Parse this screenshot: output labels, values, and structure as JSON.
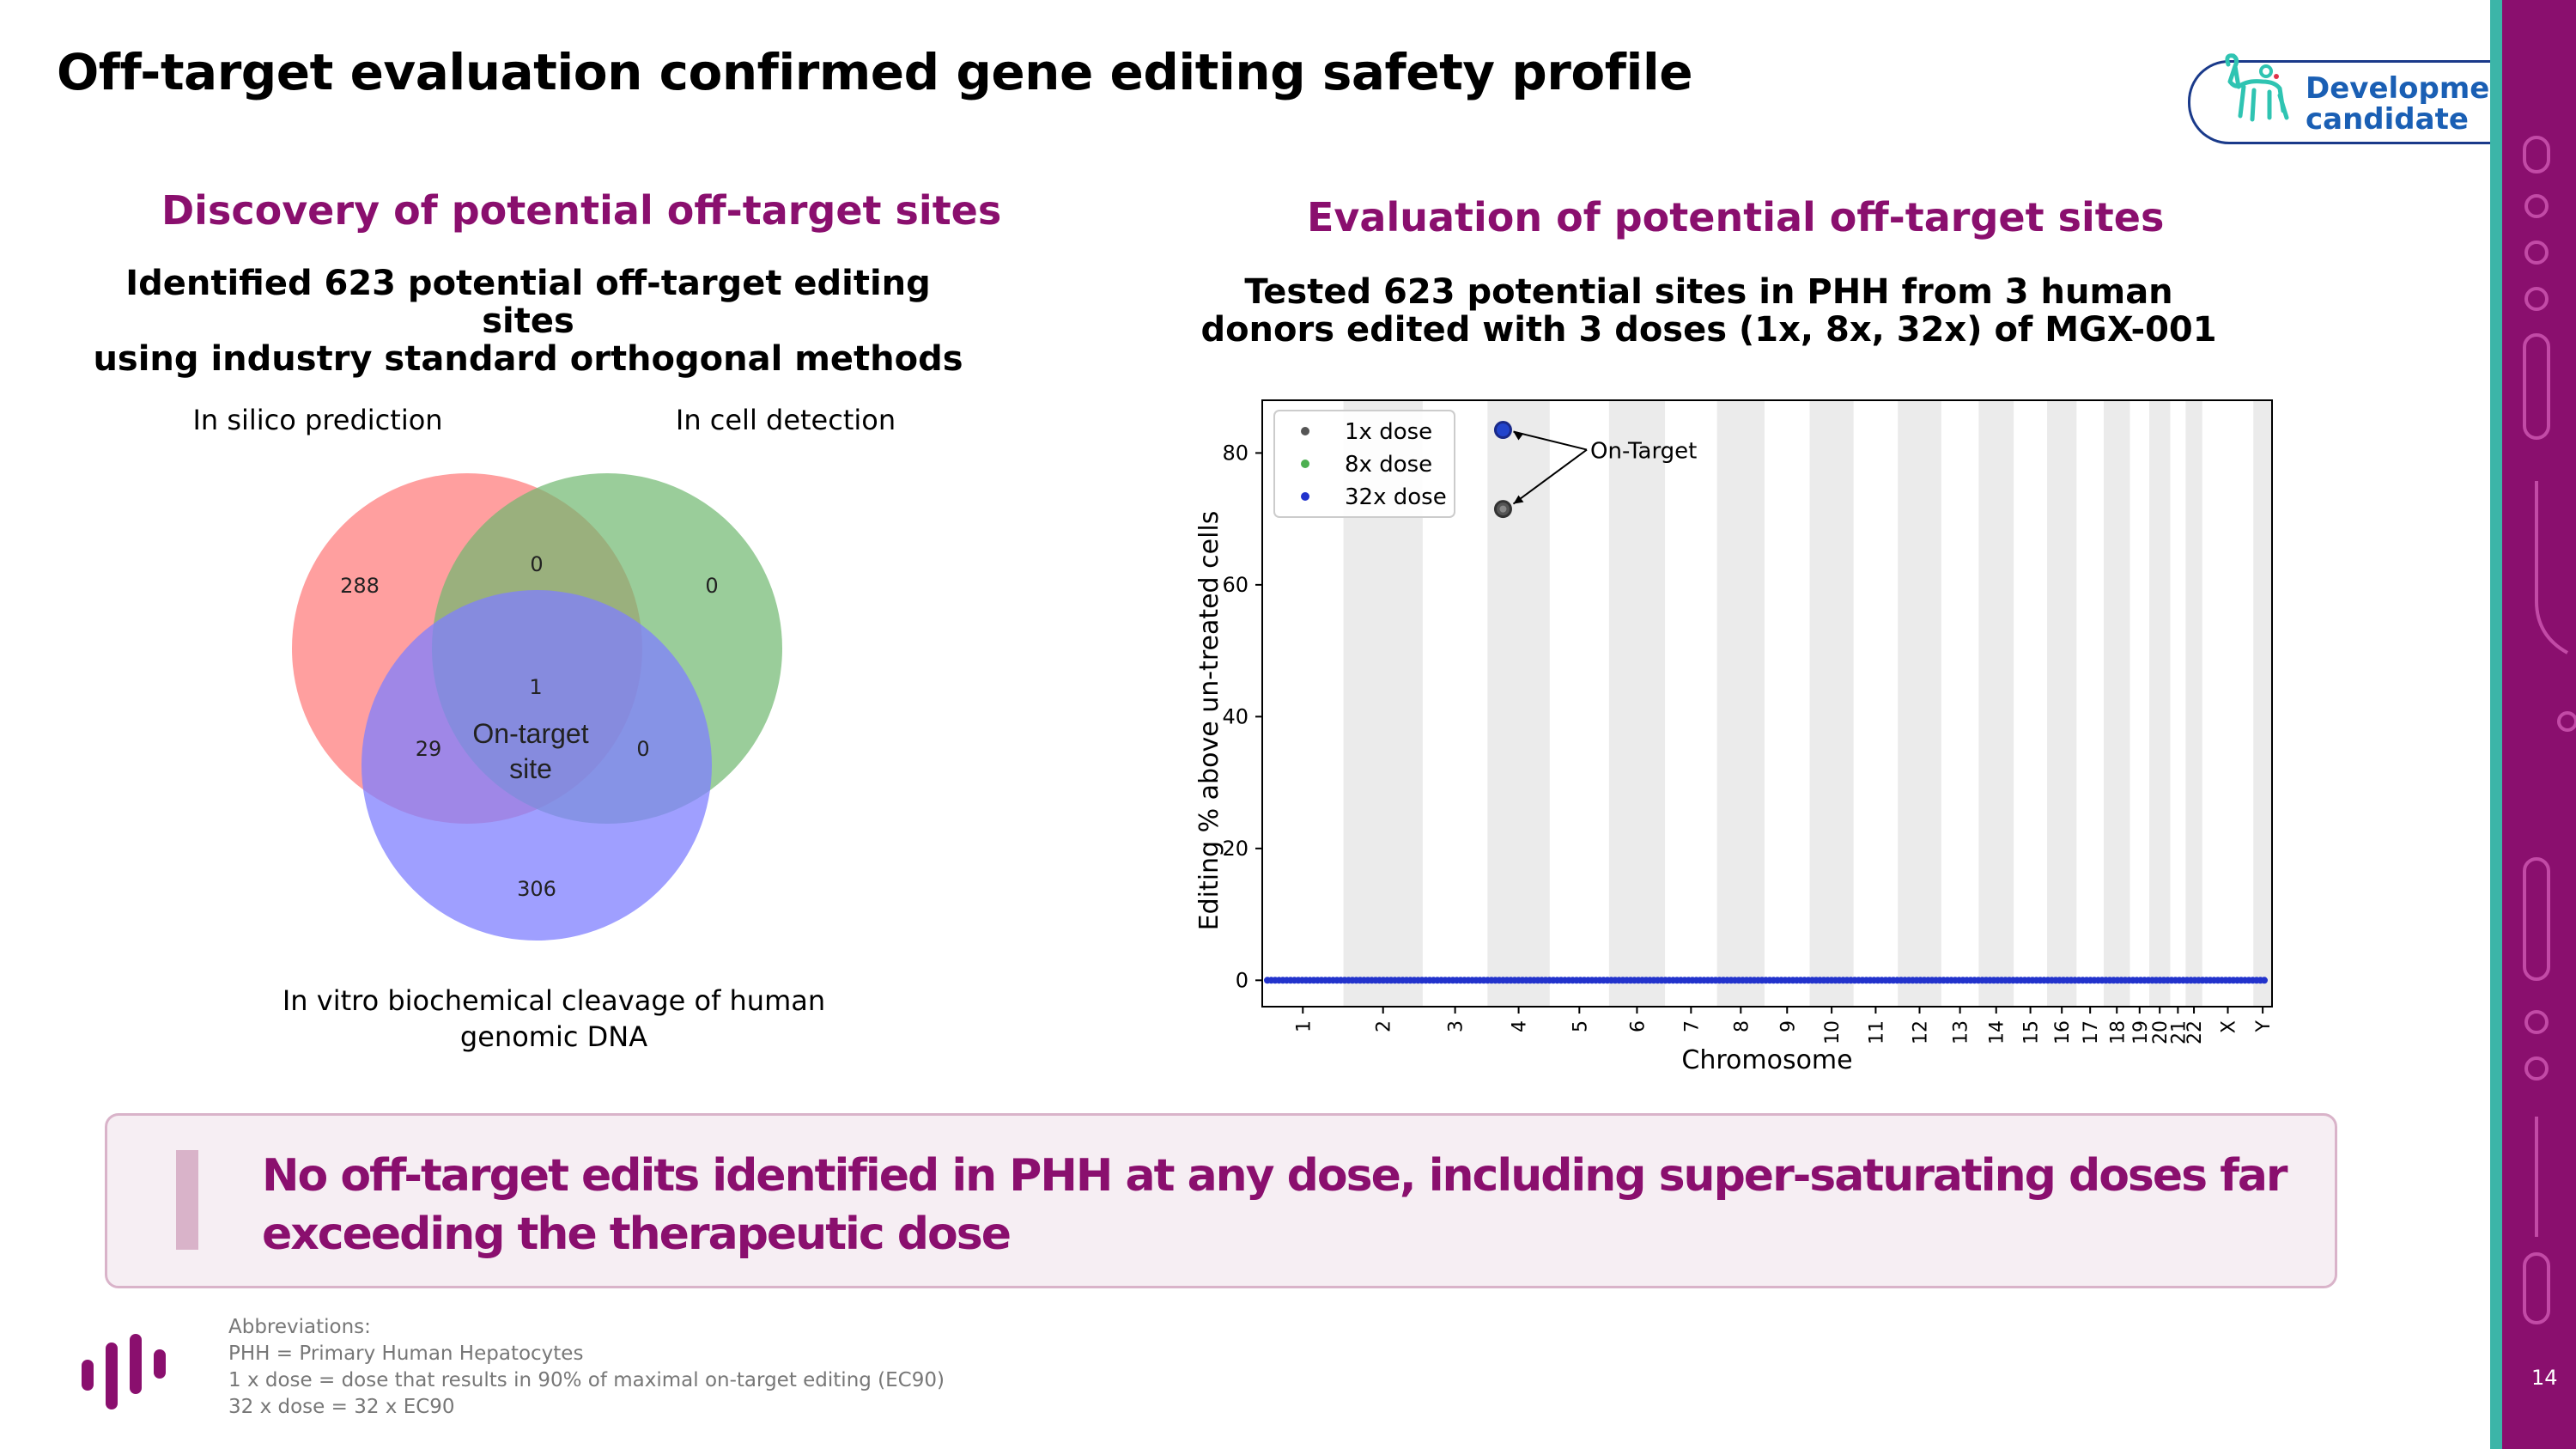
{
  "title": "Off-target evaluation confirmed gene editing safety profile",
  "badge": {
    "line1": "Development",
    "line2": "candidate",
    "icon": "cat-icon"
  },
  "page_number": "14",
  "left": {
    "heading": "Discovery of potential off-target sites",
    "sub1": "Identified 623 potential off-target editing sites",
    "sub2": "using industry standard orthogonal methods",
    "label_a": "In silico prediction",
    "label_b": "In cell detection",
    "label_c1": "In vitro biochemical cleavage of human",
    "label_c2": "genomic DNA"
  },
  "right": {
    "heading": "Evaluation of potential off-target sites",
    "sub1": "Tested 623 potential sites in PHH from 3 human",
    "sub2": "donors edited with 3 doses (1x, 8x, 32x) of MGX-001"
  },
  "callout": "No off-target edits identified in PHH at any dose, including super-saturating doses far exceeding the therapeutic dose",
  "abbreviations": [
    "Abbreviations:",
    "PHH = Primary Human Hepatocytes",
    "1 x dose = dose that results in 90% of maximal on-target editing (EC90)",
    "32 x dose = 32 x EC90"
  ],
  "chart_data": [
    {
      "type": "venn",
      "sets": [
        "In silico prediction",
        "In cell detection",
        "In vitro biochemical cleavage of human genomic DNA"
      ],
      "regions": {
        "A_only": "288",
        "B_only": "0",
        "C_only": "306",
        "AB": "0",
        "AC": "29",
        "BC": "0",
        "ABC": "1"
      },
      "center_label": [
        "On-target",
        "site"
      ],
      "colors": {
        "A": "#ff8080",
        "B": "#80c080",
        "C": "#8080ff"
      }
    },
    {
      "type": "scatter",
      "xlabel": "Chromosome",
      "ylabel": "Editing % above un-treated cells",
      "ylim": [
        -4,
        88
      ],
      "yticks": [
        "0",
        "20",
        "40",
        "60",
        "80"
      ],
      "categories": [
        "1",
        "2",
        "3",
        "4",
        "5",
        "6",
        "7",
        "8",
        "9",
        "10",
        "11",
        "12",
        "13",
        "14",
        "15",
        "16",
        "17",
        "18",
        "19",
        "20",
        "21",
        "22",
        "X",
        "Y"
      ],
      "legend": {
        "position": "top-left",
        "entries": [
          "1x dose",
          "8x dose",
          "32x dose"
        ]
      },
      "series": [
        {
          "name": "1x dose",
          "color": "#555555",
          "on_target": {
            "chromosome": "4",
            "y": 71.5
          }
        },
        {
          "name": "8x dose",
          "color": "#4caf50",
          "on_target": null
        },
        {
          "name": "32x dose",
          "color": "#2233cc",
          "on_target": {
            "chromosome": "4",
            "y": 83.5
          }
        }
      ],
      "background_values": 0,
      "annotation": "On-Target"
    }
  ]
}
